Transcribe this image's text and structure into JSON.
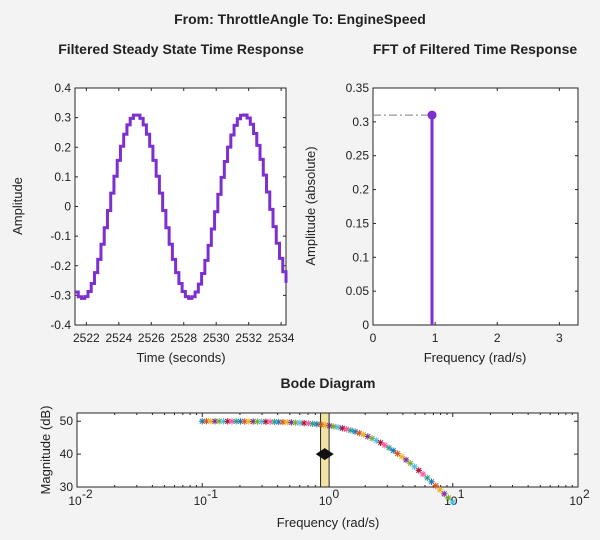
{
  "figure_title": "From: ThrottleAngle  To: EngineSpeed",
  "colors": {
    "signal": "#7e2fd0",
    "axis": "#262626",
    "background": "#f3f3f3",
    "marker_band": "#f4e3a0",
    "dashdot": "#7f7f7f",
    "star_palette": [
      "#1f77b4",
      "#d95319",
      "#edb120",
      "#7e2f8e",
      "#77ac30",
      "#4dbeee",
      "#a2142f",
      "#ff54a0",
      "#2ca089"
    ]
  },
  "chart_data": [
    {
      "id": "time",
      "type": "line",
      "title": "Filtered Steady State Time Response",
      "xlabel": "Time (seconds)",
      "ylabel": "Amplitude",
      "xlim": [
        2521.3,
        2534.3
      ],
      "ylim": [
        -0.4,
        0.4
      ],
      "xticks": [
        2522,
        2524,
        2526,
        2528,
        2530,
        2532,
        2534
      ],
      "yticks": [
        -0.4,
        -0.3,
        -0.2,
        -0.1,
        0,
        0.1,
        0.2,
        0.3,
        0.4
      ],
      "ytick_labels": [
        "-0.4",
        "-0.3",
        "-0.2",
        "-0.1",
        "0",
        "0.1",
        "0.2",
        "0.3",
        "0.4"
      ],
      "signal": {
        "amplitude": 0.31,
        "frequency_rad_s": 0.95,
        "peak_time": 2525.0,
        "sample_time": 0.2,
        "style": "stairs"
      }
    },
    {
      "id": "fft",
      "type": "stem",
      "title": "FFT of Filtered Time Response",
      "xlabel": "Frequency (rad/s)",
      "ylabel": "Amplitude (absolute)",
      "xlim": [
        0,
        3.3
      ],
      "ylim": [
        0,
        0.35
      ],
      "xticks": [
        0,
        1,
        2,
        3
      ],
      "yticks": [
        0,
        0.05,
        0.1,
        0.15,
        0.2,
        0.25,
        0.3,
        0.35
      ],
      "ytick_labels": [
        "0",
        "0.05",
        "0.1",
        "0.15",
        "0.2",
        "0.25",
        "0.3",
        "0.35"
      ],
      "points": [
        {
          "x": 0.95,
          "y": 0.31
        }
      ],
      "reference_line_y": 0.31
    },
    {
      "id": "bode",
      "type": "scatter",
      "title": "Bode Diagram",
      "xlabel": "Frequency (rad/s)",
      "ylabel": "Magnitude (dB)",
      "xscale": "log",
      "xlim": [
        0.01,
        100
      ],
      "ylim": [
        30,
        52.5
      ],
      "xticks": [
        0.01,
        0.1,
        1,
        10,
        100
      ],
      "xtick_base": "10",
      "xtick_exponents": [
        "-2",
        "-1",
        "0",
        "1",
        "2"
      ],
      "yticks": [
        30,
        40,
        50
      ],
      "ytick_labels": [
        "30",
        "40",
        "50"
      ],
      "magnitude": {
        "dc_gain_db": 50,
        "pole_rad_s": 2.5,
        "order": 2,
        "w_start": 0.1,
        "w_end": 10,
        "num_points": 60
      },
      "marker": {
        "frequency": 0.95,
        "band": [
          0.88,
          1.03
        ],
        "magnitude_db": 40
      }
    }
  ]
}
